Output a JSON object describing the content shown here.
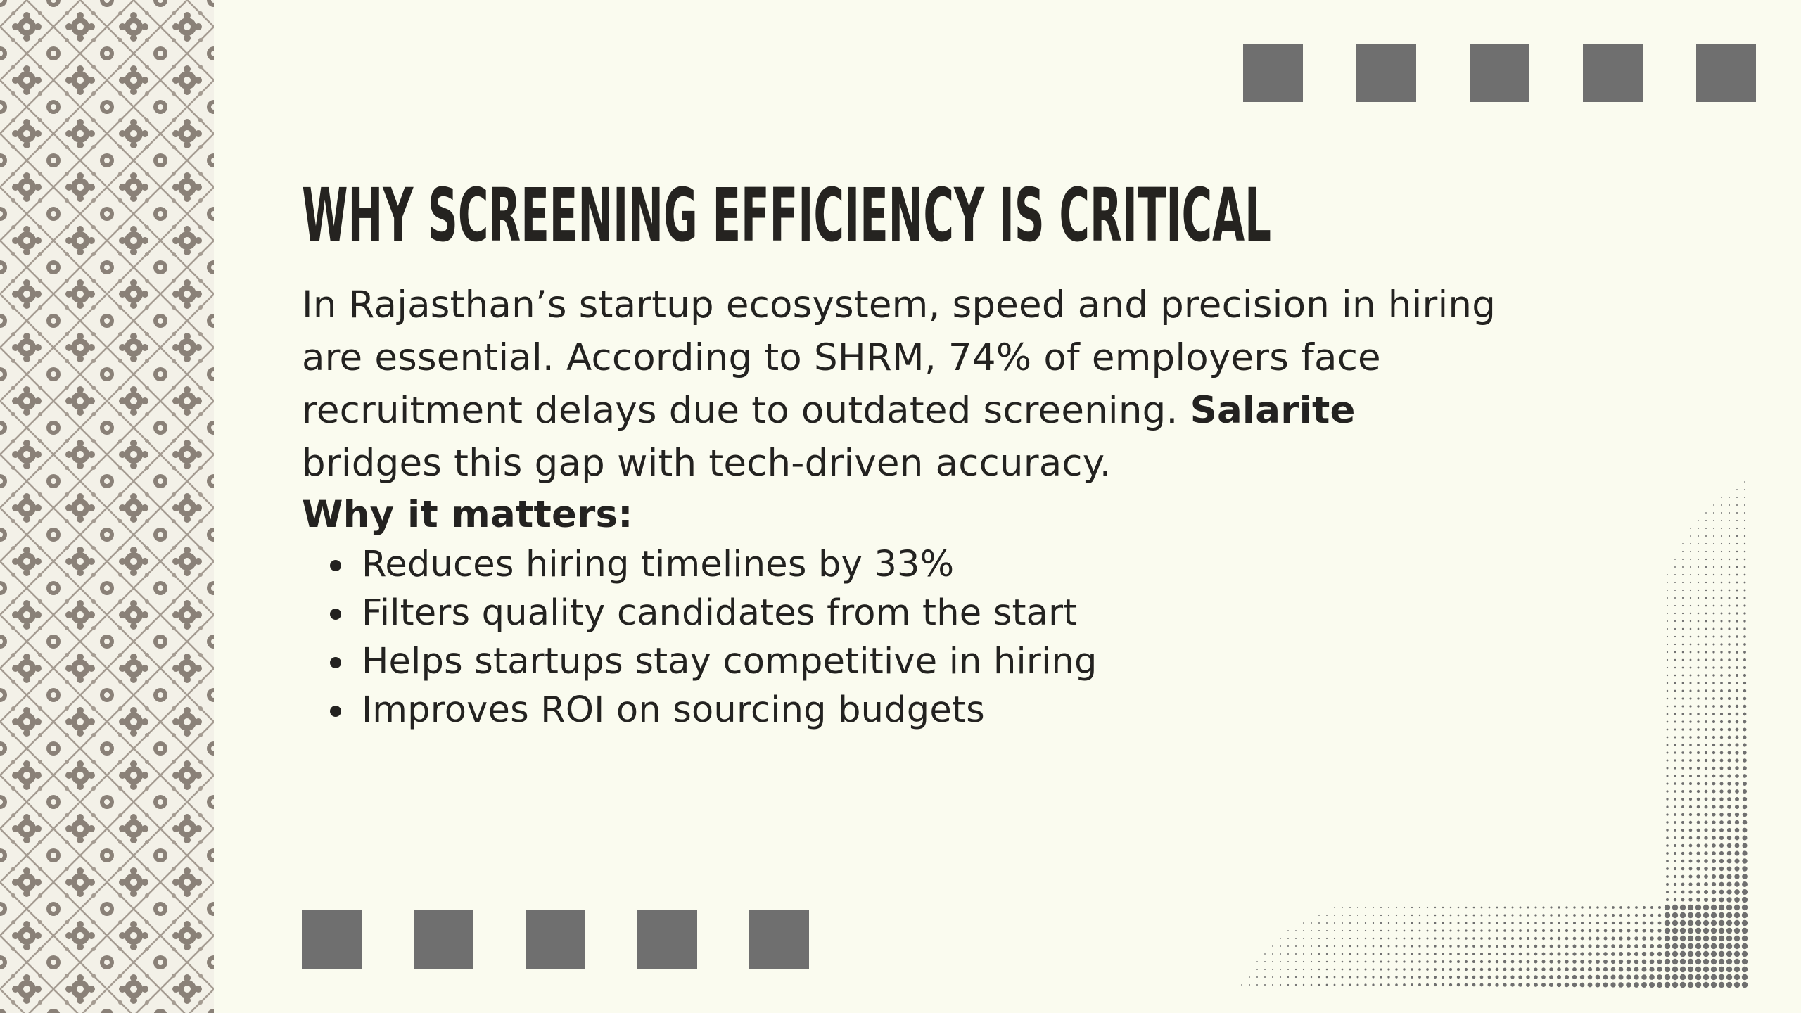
{
  "slide": {
    "title": "WHY SCREENING EFFICIENCY IS CRITICAL",
    "intro_before_brand": "In Rajasthan’s startup ecosystem, speed and precision in hiring are essential. According to SHRM, 74% of employers face recruitment delays due to outdated screening. ",
    "brand": "Salarite",
    "intro_after_brand": " bridges this gap with tech-driven accuracy.",
    "subheading": "Why it matters:",
    "bullets": [
      "Reduces hiring timelines by 33%",
      "Filters quality candidates from the start",
      "Helps startups stay competitive in hiring",
      "Improves ROI on sourcing budgets"
    ]
  },
  "decor": {
    "square_color": "#6f6f6f",
    "pattern_color": "#8a8178",
    "background": "#fafbef",
    "text_color": "#232220"
  }
}
